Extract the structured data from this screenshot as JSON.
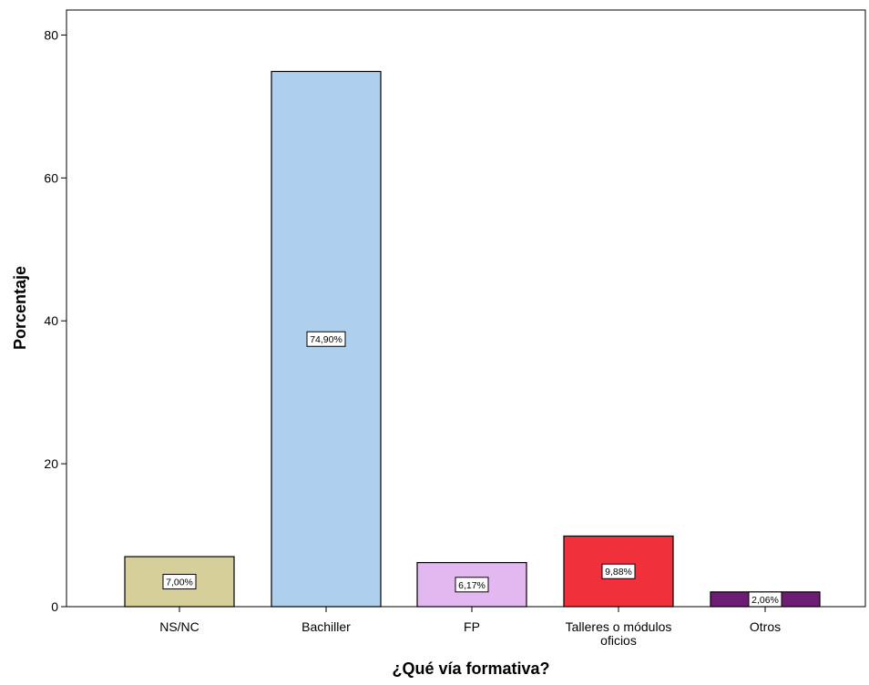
{
  "chart_data": {
    "type": "bar",
    "title": "",
    "xlabel": "¿Qué vía formativa?",
    "ylabel": "Porcentaje",
    "categories": [
      "NS/NC",
      "Bachiller",
      "FP",
      "Talleres o módulos oficios",
      "Otros"
    ],
    "category_lines": [
      [
        "NS/NC"
      ],
      [
        "Bachiller"
      ],
      [
        "FP"
      ],
      [
        "Talleres o módulos",
        "oficios"
      ],
      [
        "Otros"
      ]
    ],
    "values": [
      7.0,
      74.9,
      6.17,
      9.88,
      2.06
    ],
    "data_labels": [
      "7,00%",
      "74,90%",
      "6,17%",
      "9,88%",
      "2,06%"
    ],
    "colors": [
      "#d6cf9a",
      "#aecfed",
      "#e3b8f0",
      "#f0313c",
      "#6e1d75"
    ],
    "ylim": [
      0,
      83.5
    ],
    "yticks": [
      0,
      20,
      40,
      60,
      80
    ],
    "grid": false,
    "legend": "none"
  }
}
